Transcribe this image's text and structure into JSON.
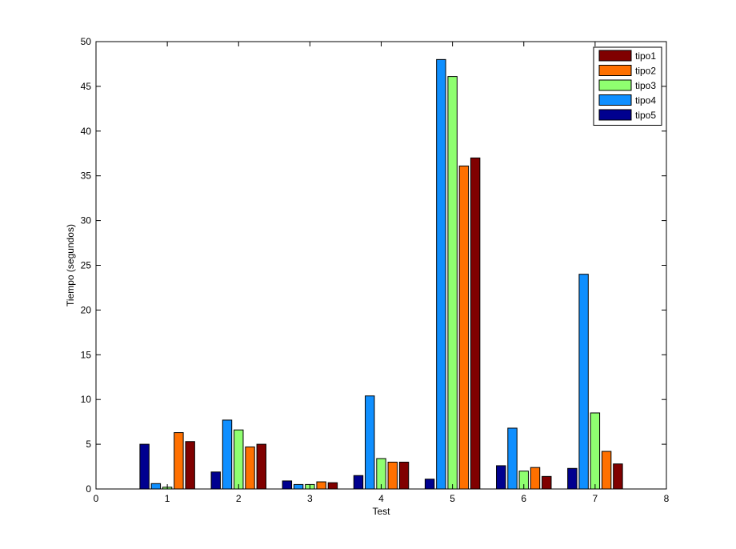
{
  "chart_data": {
    "type": "bar",
    "title": "",
    "xlabel": "Test",
    "ylabel": "Tiempo (segundos)",
    "xlim": [
      0,
      8
    ],
    "ylim": [
      0,
      50
    ],
    "xticks": [
      "0",
      "1",
      "2",
      "3",
      "4",
      "5",
      "6",
      "7",
      "8"
    ],
    "yticks": [
      "0",
      "5",
      "10",
      "15",
      "20",
      "25",
      "30",
      "35",
      "40",
      "45",
      "50"
    ],
    "categories": [
      1,
      2,
      3,
      4,
      5,
      6,
      7
    ],
    "grid": false,
    "legend_position": "top-right",
    "series": [
      {
        "name": "tipo5",
        "color": "#00008f",
        "values": [
          5.0,
          1.9,
          0.9,
          1.5,
          1.1,
          2.6,
          2.3
        ]
      },
      {
        "name": "tipo4",
        "color": "#0f8fff",
        "values": [
          0.6,
          7.7,
          0.5,
          10.4,
          48.0,
          6.8,
          24.0
        ]
      },
      {
        "name": "tipo3",
        "color": "#8fff70",
        "values": [
          0.2,
          6.6,
          0.5,
          3.4,
          46.1,
          2.0,
          8.5
        ]
      },
      {
        "name": "tipo2",
        "color": "#ff7000",
        "values": [
          6.3,
          4.7,
          0.8,
          3.0,
          36.1,
          2.4,
          4.2
        ]
      },
      {
        "name": "tipo1",
        "color": "#800000",
        "values": [
          5.3,
          5.0,
          0.7,
          3.0,
          37.0,
          1.4,
          2.8
        ]
      }
    ],
    "legend_order": [
      "tipo1",
      "tipo2",
      "tipo3",
      "tipo4",
      "tipo5"
    ]
  }
}
